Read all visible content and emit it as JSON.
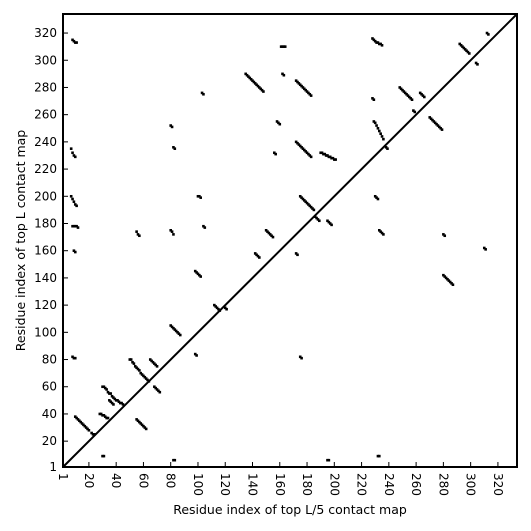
{
  "chart_data": {
    "type": "scatter",
    "title": "",
    "xlabel": "Residue index of top L/5 contact map",
    "ylabel": "Residue index of top L contact map",
    "xlim": [
      1,
      334
    ],
    "ylim": [
      1,
      334
    ],
    "x_ticks": [
      1,
      20,
      40,
      60,
      80,
      100,
      120,
      140,
      160,
      180,
      200,
      220,
      240,
      260,
      280,
      300,
      320
    ],
    "y_ticks": [
      1,
      20,
      40,
      60,
      80,
      100,
      120,
      140,
      160,
      180,
      200,
      220,
      240,
      260,
      280,
      300,
      320
    ],
    "x_tick_labels": [
      "1",
      "20",
      "40",
      "60",
      "80",
      "100",
      "120",
      "140",
      "160",
      "180",
      "200",
      "220",
      "240",
      "260",
      "280",
      "300",
      "320"
    ],
    "y_tick_labels": [
      "1",
      "20",
      "40",
      "60",
      "80",
      "100",
      "120",
      "140",
      "160",
      "180",
      "200",
      "220",
      "240",
      "260",
      "280",
      "300",
      "320"
    ],
    "diagonal": [
      [
        1,
        1
      ],
      [
        334,
        334
      ]
    ],
    "marker": "square",
    "grid": false,
    "series": [
      {
        "points": [
          [
            30,
            60
          ],
          [
            31,
            60
          ],
          [
            32,
            59
          ],
          [
            33,
            58
          ],
          [
            34,
            56
          ],
          [
            35,
            55
          ],
          [
            36,
            55
          ],
          [
            37,
            53
          ],
          [
            38,
            52
          ],
          [
            39,
            51
          ],
          [
            40,
            50
          ],
          [
            41,
            50
          ],
          [
            42,
            49
          ],
          [
            43,
            48
          ],
          [
            44,
            48
          ],
          [
            45,
            47
          ],
          [
            35,
            50
          ],
          [
            36,
            49
          ],
          [
            37,
            48
          ],
          [
            38,
            47
          ],
          [
            28,
            40
          ],
          [
            29,
            40
          ],
          [
            30,
            39
          ],
          [
            31,
            39
          ],
          [
            32,
            38
          ],
          [
            33,
            37
          ],
          [
            34,
            37
          ],
          [
            10,
            38
          ],
          [
            11,
            37
          ],
          [
            12,
            36
          ],
          [
            13,
            35
          ],
          [
            14,
            34
          ],
          [
            15,
            33
          ],
          [
            16,
            32
          ],
          [
            17,
            31
          ],
          [
            18,
            30
          ],
          [
            19,
            29
          ],
          [
            20,
            28
          ],
          [
            22,
            26
          ],
          [
            23,
            25
          ],
          [
            24,
            25
          ],
          [
            55,
            36
          ],
          [
            56,
            35
          ],
          [
            57,
            34
          ],
          [
            58,
            33
          ],
          [
            59,
            32
          ],
          [
            60,
            31
          ],
          [
            61,
            30
          ],
          [
            62,
            29
          ],
          [
            50,
            80
          ],
          [
            51,
            80
          ],
          [
            52,
            78
          ],
          [
            53,
            77
          ],
          [
            54,
            75
          ],
          [
            55,
            74
          ],
          [
            56,
            73
          ],
          [
            57,
            72
          ],
          [
            58,
            70
          ],
          [
            59,
            69
          ],
          [
            60,
            68
          ],
          [
            61,
            67
          ],
          [
            62,
            66
          ],
          [
            63,
            65
          ],
          [
            64,
            64
          ],
          [
            65,
            80
          ],
          [
            66,
            79
          ],
          [
            67,
            78
          ],
          [
            68,
            77
          ],
          [
            69,
            76
          ],
          [
            70,
            75
          ],
          [
            68,
            60
          ],
          [
            69,
            59
          ],
          [
            70,
            58
          ],
          [
            71,
            57
          ],
          [
            72,
            56
          ],
          [
            80,
            105
          ],
          [
            81,
            104
          ],
          [
            82,
            103
          ],
          [
            83,
            102
          ],
          [
            84,
            101
          ],
          [
            85,
            100
          ],
          [
            86,
            99
          ],
          [
            87,
            98
          ],
          [
            98,
            145
          ],
          [
            99,
            144
          ],
          [
            100,
            143
          ],
          [
            101,
            142
          ],
          [
            102,
            141
          ],
          [
            112,
            120
          ],
          [
            113,
            119
          ],
          [
            114,
            118
          ],
          [
            115,
            117
          ],
          [
            116,
            116
          ],
          [
            120,
            118
          ],
          [
            121,
            117
          ],
          [
            135,
            290
          ],
          [
            136,
            289
          ],
          [
            137,
            288
          ],
          [
            138,
            287
          ],
          [
            139,
            286
          ],
          [
            140,
            285
          ],
          [
            141,
            284
          ],
          [
            142,
            283
          ],
          [
            143,
            282
          ],
          [
            144,
            281
          ],
          [
            145,
            280
          ],
          [
            146,
            279
          ],
          [
            147,
            278
          ],
          [
            148,
            277
          ],
          [
            150,
            175
          ],
          [
            151,
            174
          ],
          [
            152,
            173
          ],
          [
            153,
            172
          ],
          [
            154,
            171
          ],
          [
            155,
            170
          ],
          [
            156,
            232
          ],
          [
            157,
            231
          ],
          [
            158,
            255
          ],
          [
            159,
            254
          ],
          [
            160,
            253
          ],
          [
            161,
            310
          ],
          [
            162,
            310
          ],
          [
            163,
            310
          ],
          [
            164,
            310
          ],
          [
            162,
            290
          ],
          [
            163,
            289
          ],
          [
            172,
            285
          ],
          [
            173,
            284
          ],
          [
            174,
            283
          ],
          [
            175,
            282
          ],
          [
            176,
            281
          ],
          [
            177,
            280
          ],
          [
            178,
            279
          ],
          [
            179,
            278
          ],
          [
            180,
            277
          ],
          [
            181,
            276
          ],
          [
            182,
            275
          ],
          [
            183,
            274
          ],
          [
            172,
            240
          ],
          [
            173,
            239
          ],
          [
            174,
            238
          ],
          [
            175,
            237
          ],
          [
            176,
            236
          ],
          [
            177,
            235
          ],
          [
            178,
            234
          ],
          [
            179,
            233
          ],
          [
            180,
            232
          ],
          [
            181,
            231
          ],
          [
            182,
            230
          ],
          [
            183,
            229
          ],
          [
            175,
            200
          ],
          [
            176,
            199
          ],
          [
            177,
            198
          ],
          [
            178,
            197
          ],
          [
            179,
            196
          ],
          [
            180,
            195
          ],
          [
            181,
            194
          ],
          [
            182,
            193
          ],
          [
            183,
            192
          ],
          [
            184,
            191
          ],
          [
            185,
            190
          ],
          [
            172,
            158
          ],
          [
            173,
            157
          ],
          [
            186,
            185
          ],
          [
            187,
            184
          ],
          [
            188,
            183
          ],
          [
            189,
            182
          ],
          [
            195,
            182
          ],
          [
            196,
            181
          ],
          [
            197,
            180
          ],
          [
            198,
            179
          ],
          [
            190,
            232
          ],
          [
            191,
            232
          ],
          [
            192,
            231
          ],
          [
            193,
            231
          ],
          [
            194,
            230
          ],
          [
            195,
            230
          ],
          [
            196,
            229
          ],
          [
            197,
            229
          ],
          [
            198,
            228
          ],
          [
            199,
            228
          ],
          [
            200,
            227
          ],
          [
            201,
            227
          ],
          [
            228,
            316
          ],
          [
            229,
            315
          ],
          [
            230,
            314
          ],
          [
            231,
            313
          ],
          [
            232,
            313
          ],
          [
            233,
            312
          ],
          [
            234,
            312
          ],
          [
            235,
            311
          ],
          [
            228,
            272
          ],
          [
            229,
            271
          ],
          [
            229,
            255
          ],
          [
            230,
            254
          ],
          [
            231,
            252
          ],
          [
            232,
            250
          ],
          [
            233,
            248
          ],
          [
            234,
            246
          ],
          [
            235,
            244
          ],
          [
            236,
            242
          ],
          [
            230,
            200
          ],
          [
            231,
            199
          ],
          [
            232,
            198
          ],
          [
            233,
            175
          ],
          [
            234,
            174
          ],
          [
            235,
            173
          ],
          [
            236,
            172
          ],
          [
            238,
            236
          ],
          [
            239,
            235
          ],
          [
            248,
            280
          ],
          [
            249,
            279
          ],
          [
            250,
            278
          ],
          [
            251,
            277
          ],
          [
            252,
            276
          ],
          [
            253,
            275
          ],
          [
            254,
            274
          ],
          [
            255,
            273
          ],
          [
            256,
            272
          ],
          [
            257,
            271
          ],
          [
            258,
            263
          ],
          [
            259,
            262
          ],
          [
            263,
            276
          ],
          [
            264,
            275
          ],
          [
            265,
            274
          ],
          [
            266,
            273
          ],
          [
            270,
            258
          ],
          [
            271,
            257
          ],
          [
            272,
            256
          ],
          [
            273,
            255
          ],
          [
            274,
            254
          ],
          [
            275,
            253
          ],
          [
            276,
            252
          ],
          [
            277,
            251
          ],
          [
            278,
            250
          ],
          [
            279,
            249
          ],
          [
            280,
            142
          ],
          [
            281,
            141
          ],
          [
            282,
            140
          ],
          [
            283,
            139
          ],
          [
            284,
            138
          ],
          [
            285,
            137
          ],
          [
            286,
            136
          ],
          [
            287,
            135
          ],
          [
            280,
            172
          ],
          [
            281,
            171
          ],
          [
            292,
            312
          ],
          [
            293,
            311
          ],
          [
            294,
            310
          ],
          [
            295,
            309
          ],
          [
            296,
            308
          ],
          [
            297,
            307
          ],
          [
            298,
            306
          ],
          [
            299,
            305
          ],
          [
            304,
            298
          ],
          [
            305,
            297
          ],
          [
            312,
            320
          ],
          [
            313,
            319
          ],
          [
            310,
            162
          ],
          [
            311,
            161
          ],
          [
            8,
            315
          ],
          [
            9,
            314
          ],
          [
            10,
            313
          ],
          [
            11,
            313
          ],
          [
            7,
            235
          ],
          [
            8,
            232
          ],
          [
            9,
            230
          ],
          [
            10,
            229
          ],
          [
            7,
            200
          ],
          [
            8,
            198
          ],
          [
            9,
            196
          ],
          [
            10,
            194
          ],
          [
            11,
            193
          ],
          [
            8,
            178
          ],
          [
            9,
            178
          ],
          [
            10,
            178
          ],
          [
            11,
            178
          ],
          [
            12,
            177
          ],
          [
            9,
            160
          ],
          [
            10,
            159
          ],
          [
            8,
            82
          ],
          [
            9,
            81
          ],
          [
            10,
            81
          ],
          [
            55,
            174
          ],
          [
            56,
            172
          ],
          [
            57,
            171
          ],
          [
            80,
            252
          ],
          [
            81,
            251
          ],
          [
            82,
            236
          ],
          [
            83,
            235
          ],
          [
            80,
            175
          ],
          [
            81,
            174
          ],
          [
            82,
            172
          ],
          [
            103,
            276
          ],
          [
            104,
            275
          ],
          [
            104,
            178
          ],
          [
            105,
            177
          ],
          [
            98,
            84
          ],
          [
            99,
            83
          ],
          [
            142,
            158
          ],
          [
            143,
            157
          ],
          [
            144,
            156
          ],
          [
            145,
            155
          ],
          [
            175,
            82
          ],
          [
            176,
            81
          ],
          [
            82,
            6
          ],
          [
            83,
            6
          ],
          [
            195,
            6
          ],
          [
            196,
            6
          ],
          [
            232,
            9
          ],
          [
            233,
            9
          ],
          [
            30,
            9
          ],
          [
            31,
            9
          ],
          [
            100,
            200
          ],
          [
            101,
            200
          ],
          [
            102,
            199
          ]
        ]
      }
    ]
  }
}
